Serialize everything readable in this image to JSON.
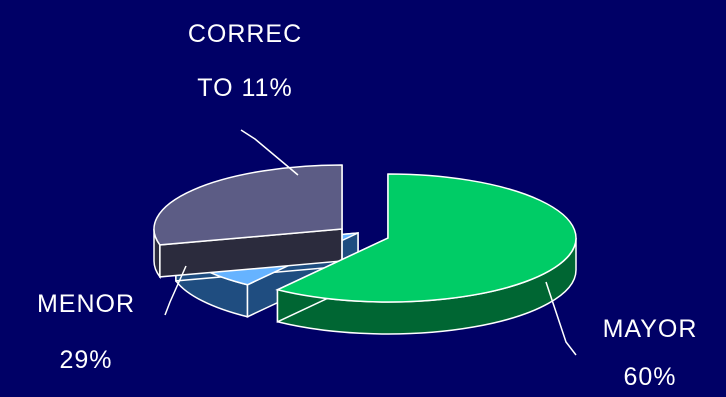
{
  "colors": {
    "background": "#000066",
    "text": "#ffffff",
    "leader": "#ffffff",
    "edge": "#ffffff"
  },
  "chart_data": {
    "type": "pie",
    "style": "3d-exploded",
    "title": "",
    "slices": [
      {
        "name": "MAYOR",
        "value": 60,
        "label_lines": [
          "MAYOR",
          "60%"
        ],
        "color": "#00cc66",
        "side_color": "#006633",
        "exploded": true
      },
      {
        "name": "CORRECTO",
        "value": 11,
        "label_lines": [
          "CORREC",
          "TO 11%"
        ],
        "color": "#66b3ff",
        "side_color": "#1f4d80",
        "exploded": false
      },
      {
        "name": "MENOR",
        "value": 29,
        "label_lines": [
          "MENOR",
          "29%"
        ],
        "color": "#5c5c85",
        "side_color": "#2b2b3d",
        "exploded": false
      }
    ]
  }
}
